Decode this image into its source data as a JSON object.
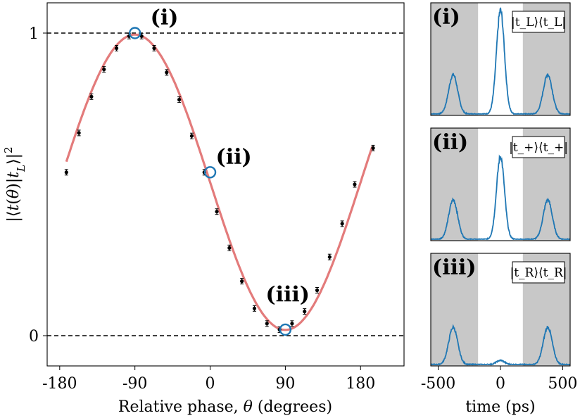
{
  "chart_data": [
    {
      "type": "scatter",
      "xlabel": "Relative phase, θ (degrees)",
      "ylabel": "|⟨t(θ)|t_L⟩|²",
      "xlim": [
        -195,
        232
      ],
      "ylim": [
        -0.1,
        1.1
      ],
      "x_ticks": [
        -180,
        -90,
        0,
        90,
        180
      ],
      "x_tick_labels": [
        "-180",
        "-90",
        "0",
        "90",
        "180"
      ],
      "y_ticks": [
        0,
        1
      ],
      "y_tick_labels": [
        "0",
        "1"
      ],
      "reference_lines": [
        0,
        1
      ],
      "fit_color": "#e37b7b",
      "point_color": "#000000",
      "marker_color": "#1f77b4",
      "fit": {
        "model": "0.01 + 0.985 * sin²((θ - 0)/2 ... )",
        "x_range": [
          -172,
          195
        ]
      },
      "series": [
        {
          "x": [
            -172,
            -157,
            -142,
            -127,
            -112,
            -97,
            -82,
            -67,
            -52,
            -37,
            -22,
            -7,
            8,
            23,
            38,
            53,
            68,
            83,
            98,
            113,
            128,
            143,
            158,
            173,
            195
          ],
          "y": [
            0.54,
            0.67,
            0.79,
            0.88,
            0.95,
            0.99,
            0.99,
            0.95,
            0.87,
            0.78,
            0.66,
            0.54,
            0.41,
            0.29,
            0.18,
            0.09,
            0.04,
            0.02,
            0.04,
            0.08,
            0.15,
            0.26,
            0.37,
            0.5,
            0.62
          ]
        }
      ],
      "highlighted_points": [
        {
          "label": "(i)",
          "x": -90,
          "y": 1.0
        },
        {
          "label": "(ii)",
          "x": 0,
          "y": 0.54
        },
        {
          "label": "(iii)",
          "x": 90,
          "y": 0.02
        }
      ]
    },
    {
      "type": "line",
      "panel_label": "(i)",
      "legend": "|t_L⟩⟨t_L|",
      "xlim": [
        -560,
        560
      ],
      "shaded_regions": [
        [
          -560,
          -180
        ],
        [
          180,
          560
        ]
      ],
      "peaks": [
        {
          "x": -380,
          "height": 0.38
        },
        {
          "x": 0,
          "height": 1.0
        },
        {
          "x": 380,
          "height": 0.38
        }
      ]
    },
    {
      "type": "line",
      "panel_label": "(ii)",
      "legend": "|t_+⟩⟨t_+|",
      "xlim": [
        -560,
        560
      ],
      "shaded_regions": [
        [
          -560,
          -180
        ],
        [
          180,
          560
        ]
      ],
      "peaks": [
        {
          "x": -380,
          "height": 0.38
        },
        {
          "x": 0,
          "height": 0.8
        },
        {
          "x": 380,
          "height": 0.38
        }
      ]
    },
    {
      "type": "line",
      "panel_label": "(iii)",
      "legend": "|t_R⟩⟨t_R|",
      "xlim": [
        -560,
        560
      ],
      "shaded_regions": [
        [
          -560,
          -180
        ],
        [
          180,
          560
        ]
      ],
      "x_ticks": [
        -500,
        0,
        500
      ],
      "x_tick_labels": [
        "-500",
        "0",
        "500"
      ],
      "xlabel": "time (ps)",
      "peaks": [
        {
          "x": -380,
          "height": 0.36
        },
        {
          "x": 0,
          "height": 0.04
        },
        {
          "x": 380,
          "height": 0.36
        }
      ]
    }
  ],
  "colors": {
    "shade": "#c8c8c8",
    "trace": "#1f77b4"
  }
}
